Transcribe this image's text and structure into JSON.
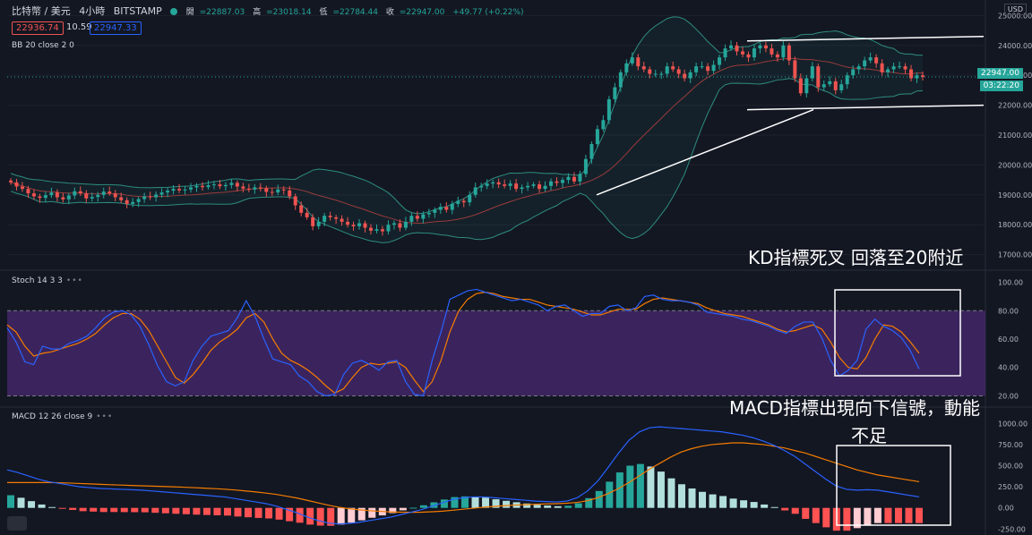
{
  "header": {
    "symbol": "比特幣 / 美元",
    "interval": "4小時",
    "exchange": "BITSTAMP",
    "ohlc": {
      "open_label": "開",
      "open": "=22887.03",
      "high_label": "高",
      "high": "=23018.14",
      "low_label": "低",
      "low": "=22784.44",
      "close_label": "收",
      "close": "=22947.00",
      "change": "+49.77 (+0.22%)"
    },
    "bid": "22936.74",
    "spread": "10.59",
    "ask": "22947.33"
  },
  "indicators": {
    "bb": "BB 20 close 2 0",
    "stoch": "Stoch 14 3 3",
    "macd": "MACD 12 26 close 9"
  },
  "currency": "USD",
  "price_tag": {
    "price": "22947.00",
    "countdown": "03:22:20"
  },
  "annotations": {
    "kd": "KD指標死叉  回落至20附近",
    "macd_line1": "MACD指標出現向下信號，動能",
    "macd_line2": "不足"
  },
  "colors": {
    "up": "#26a69a",
    "down": "#ef5350",
    "bb": "#2e8c7f",
    "basis": "#9a3b3b",
    "k_line": "#2962ff",
    "d_line": "#f57c00",
    "stoch_band": "#4a2a72"
  },
  "chart_data": [
    {
      "type": "candlestick",
      "title": "比特幣 / 美元 · 4小時 · BITSTAMP",
      "ylim": [
        16600,
        25400
      ],
      "y_ticks": [
        "25000.00",
        "24000.00",
        "23000.00",
        "22000.00",
        "21000.00",
        "20000.00",
        "19000.00",
        "18000.00",
        "17000.00"
      ],
      "last_price": 22947,
      "candles_close": [
        19420,
        19280,
        19200,
        19050,
        18950,
        18900,
        18990,
        19080,
        18920,
        18850,
        18980,
        19120,
        19050,
        18880,
        18930,
        19000,
        19110,
        19050,
        18920,
        18820,
        18700,
        18760,
        18860,
        18950,
        18920,
        19010,
        19080,
        19140,
        19200,
        19150,
        19180,
        19250,
        19300,
        19260,
        19320,
        19350,
        19290,
        19330,
        19400,
        19280,
        19210,
        19180,
        19250,
        19220,
        19100,
        19080,
        19180,
        19150,
        18950,
        18650,
        18400,
        18250,
        17950,
        18100,
        18300,
        18250,
        18200,
        18100,
        18000,
        17950,
        18050,
        17900,
        17800,
        17850,
        17780,
        18000,
        18050,
        17900,
        18100,
        18300,
        18200,
        18350,
        18400,
        18500,
        18600,
        18500,
        18700,
        18800,
        18750,
        19000,
        19250,
        19300,
        19380,
        19420,
        19350,
        19300,
        19380,
        19200,
        19250,
        19300,
        19350,
        19200,
        19300,
        19450,
        19400,
        19500,
        19600,
        19450,
        19700,
        20200,
        20700,
        21200,
        21500,
        22200,
        22600,
        23100,
        23400,
        23600,
        23300,
        23200,
        23050,
        23050,
        23050,
        23300,
        23200,
        23050,
        22900,
        23100,
        23300,
        23300,
        23150,
        23350,
        23600,
        23900,
        24000,
        23800,
        23700,
        23600,
        23900,
        24000,
        23900,
        23700,
        23600,
        24000,
        23500,
        22900,
        22400,
        22900,
        23300,
        22600,
        22700,
        22800,
        22500,
        22700,
        23000,
        23200,
        23300,
        23500,
        23600,
        23400,
        23100,
        23200,
        23300,
        23300,
        23200,
        22900,
        23000,
        22947
      ],
      "bollinger": {
        "period": 20,
        "stddev": 2
      },
      "trendlines": [
        {
          "from": [
            19000,
            "bar 98"
          ],
          "to": [
            21850,
            "bar 133"
          ]
        },
        {
          "level": 22000,
          "channel_bottom": true
        },
        {
          "level": 24150,
          "channel_top": true
        }
      ]
    },
    {
      "type": "line",
      "title": "Stoch 14 3 3",
      "ylim": [
        14,
        106
      ],
      "y_ticks": [
        "100.00",
        "80.00",
        "60.00",
        "40.00",
        "20.00"
      ],
      "band": [
        20,
        80
      ],
      "series": [
        {
          "name": "K",
          "values": [
            68,
            58,
            44,
            42,
            55,
            53,
            53,
            57,
            59,
            62,
            68,
            75,
            79,
            80,
            77,
            69,
            56,
            41,
            30,
            27,
            30,
            45,
            55,
            62,
            64,
            66,
            75,
            87,
            76,
            60,
            46,
            44,
            42,
            34,
            30,
            23,
            20,
            21,
            35,
            43,
            45,
            42,
            38,
            44,
            45,
            30,
            21,
            20,
            45,
            65,
            88,
            91,
            94,
            95,
            93,
            91,
            89,
            87,
            88,
            86,
            84,
            80,
            83,
            84,
            80,
            76,
            78,
            78,
            83,
            84,
            80,
            82,
            90,
            91,
            88,
            87,
            87,
            86,
            84,
            79,
            78,
            77,
            76,
            74,
            73,
            71,
            69,
            66,
            64,
            69,
            72,
            72,
            61,
            45,
            34,
            38,
            45,
            67,
            74,
            69,
            66,
            61,
            52,
            39
          ]
        },
        {
          "name": "D",
          "values": [
            70,
            65,
            55,
            48,
            50,
            51,
            53,
            55,
            57,
            60,
            64,
            70,
            75,
            78,
            78,
            74,
            66,
            55,
            44,
            33,
            29,
            35,
            43,
            52,
            58,
            62,
            67,
            75,
            78,
            72,
            60,
            50,
            45,
            42,
            38,
            33,
            27,
            22,
            25,
            33,
            40,
            43,
            42,
            43,
            44,
            40,
            31,
            23,
            30,
            45,
            65,
            80,
            88,
            92,
            93,
            92,
            90,
            89,
            88,
            88,
            86,
            84,
            83,
            82,
            81,
            79,
            77,
            77,
            79,
            81,
            81,
            81,
            85,
            88,
            89,
            88,
            87,
            86,
            85,
            82,
            80,
            78,
            77,
            76,
            74,
            72,
            70,
            67,
            65,
            66,
            68,
            70,
            67,
            58,
            47,
            40,
            39,
            47,
            60,
            70,
            69,
            65,
            58,
            50
          ]
        }
      ]
    },
    {
      "type": "bar",
      "title": "MACD 12 26 close 9",
      "ylim": [
        -300,
        1120
      ],
      "y_ticks": [
        "1000.00",
        "750.00",
        "500.00",
        "250.00",
        "0.00",
        "-250.00"
      ],
      "series": [
        {
          "name": "MACD",
          "values": [
            450,
            420,
            380,
            340,
            310,
            290,
            270,
            250,
            240,
            230,
            225,
            220,
            215,
            210,
            200,
            190,
            180,
            170,
            160,
            150,
            140,
            130,
            110,
            90,
            70,
            50,
            20,
            -20,
            -60,
            -110,
            -150,
            -180,
            -190,
            -185,
            -170,
            -150,
            -130,
            -110,
            -80,
            -50,
            -20,
            20,
            60,
            100,
            120,
            130,
            130,
            120,
            110,
            100,
            90,
            80,
            75,
            70,
            80,
            120,
            200,
            320,
            480,
            650,
            800,
            900,
            950,
            960,
            950,
            940,
            930,
            920,
            910,
            900,
            880,
            860,
            830,
            790,
            740,
            680,
            610,
            520,
            430,
            340,
            260,
            220,
            210,
            215,
            210,
            190,
            170,
            150,
            130
          ]
        },
        {
          "name": "Signal",
          "values": [
            300,
            300,
            300,
            300,
            300,
            298,
            294,
            289,
            284,
            279,
            274,
            270,
            266,
            262,
            258,
            254,
            250,
            245,
            240,
            234,
            228,
            221,
            212,
            201,
            189,
            175,
            159,
            138,
            116,
            88,
            60,
            32,
            8,
            -10,
            -23,
            -33,
            -41,
            -48,
            -51,
            -52,
            -51,
            -46,
            -39,
            -28,
            -16,
            -4,
            8,
            18,
            26,
            33,
            38,
            43,
            47,
            50,
            55,
            65,
            85,
            120,
            170,
            230,
            300,
            380,
            460,
            530,
            600,
            660,
            700,
            730,
            750,
            760,
            770,
            770,
            760,
            750,
            730,
            710,
            680,
            650,
            610,
            570,
            530,
            490,
            450,
            420,
            390,
            370,
            350,
            330,
            310
          ]
        },
        {
          "name": "Histogram",
          "values": [
            150,
            120,
            80,
            40,
            10,
            -8,
            -24,
            -39,
            -44,
            -49,
            -49,
            -50,
            -51,
            -52,
            -58,
            -64,
            -70,
            -75,
            -80,
            -84,
            -88,
            -91,
            -102,
            -111,
            -119,
            -125,
            -139,
            -158,
            -176,
            -198,
            -210,
            -212,
            -198,
            -175,
            -147,
            -117,
            -89,
            -62,
            -29,
            2,
            31,
            66,
            99,
            128,
            136,
            134,
            122,
            102,
            84,
            67,
            52,
            37,
            28,
            20,
            25,
            55,
            115,
            200,
            310,
            420,
            500,
            520,
            490,
            430,
            350,
            280,
            230,
            190,
            160,
            140,
            110,
            90,
            70,
            40,
            10,
            -30,
            -70,
            -130,
            -180,
            -230,
            -270,
            -270,
            -240,
            -205,
            -180,
            -180,
            -180,
            -180,
            -180
          ]
        }
      ]
    }
  ]
}
